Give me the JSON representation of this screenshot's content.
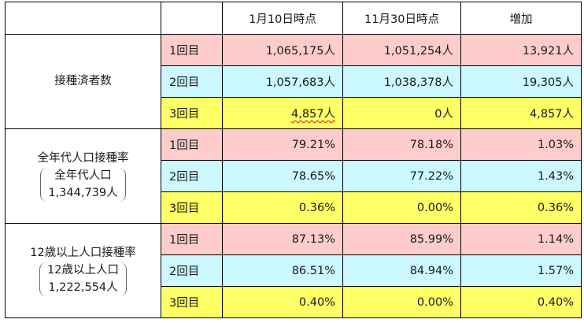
{
  "headers": [
    "",
    "1月10日時点",
    "11月30日時点",
    "増加"
  ],
  "colors": {
    "dose1": "#ffcccc",
    "dose2": "#ccf8ff",
    "dose3": "#ffff66",
    "border": "#000000",
    "spell_underline": "#e21818"
  },
  "groups": [
    {
      "title": "接種済者数",
      "sub_line1": "",
      "sub_line2": "",
      "rows": [
        {
          "dose": "1回目",
          "jan10": "1,065,175人",
          "nov30": "1,051,254人",
          "increase": "13,921人"
        },
        {
          "dose": "2回目",
          "jan10": "1,057,683人",
          "nov30": "1,038,378人",
          "increase": "19,305人"
        },
        {
          "dose": "3回目",
          "jan10": "4,857人",
          "nov30": "0人",
          "increase": "4,857人"
        }
      ]
    },
    {
      "title": "全年代人口接種率",
      "sub_line1": "全年代人口",
      "sub_line2": "1,344,739人",
      "rows": [
        {
          "dose": "1回目",
          "jan10": "79.21%",
          "nov30": "78.18%",
          "increase": "1.03%"
        },
        {
          "dose": "2回目",
          "jan10": "78.65%",
          "nov30": "77.22%",
          "increase": "1.43%"
        },
        {
          "dose": "3回目",
          "jan10": "0.36%",
          "nov30": "0.00%",
          "increase": "0.36%"
        }
      ]
    },
    {
      "title": "12歳以上人口接種率",
      "sub_line1": "12歳以上人口",
      "sub_line2": "1,222,554人",
      "rows": [
        {
          "dose": "1回目",
          "jan10": "87.13%",
          "nov30": "85.99%",
          "increase": "1.14%"
        },
        {
          "dose": "2回目",
          "jan10": "86.51%",
          "nov30": "84.94%",
          "increase": "1.57%"
        },
        {
          "dose": "3回目",
          "jan10": "0.40%",
          "nov30": "0.00%",
          "increase": "0.40%"
        }
      ]
    }
  ]
}
